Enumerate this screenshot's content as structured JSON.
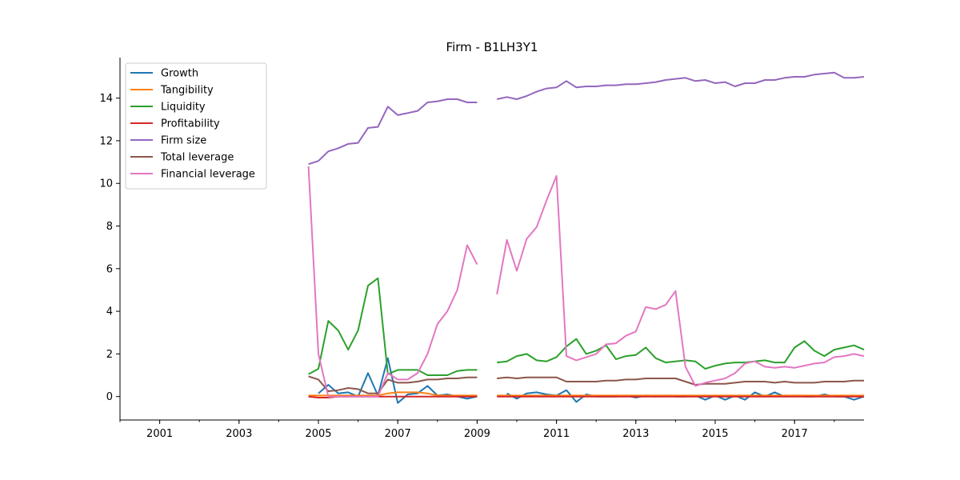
{
  "chart_data": {
    "type": "line",
    "title": "Firm - B1LH3Y1",
    "xlabel": "",
    "ylabel": "",
    "xlim": [
      2000.0,
      2018.75
    ],
    "ylim": [
      -1.1,
      15.9
    ],
    "grid": false,
    "legend_position": "top-left",
    "x_ticks": [
      2001,
      2003,
      2005,
      2007,
      2009,
      2011,
      2013,
      2015,
      2017
    ],
    "y_ticks": [
      0,
      2,
      4,
      6,
      8,
      10,
      12,
      14
    ],
    "x": [
      2004.75,
      2005.0,
      2005.25,
      2005.5,
      2005.75,
      2006.0,
      2006.25,
      2006.5,
      2006.75,
      2007.0,
      2007.25,
      2007.5,
      2007.75,
      2008.0,
      2008.25,
      2008.5,
      2008.75,
      2009.0,
      2009.25,
      2009.5,
      2009.75,
      2010.0,
      2010.25,
      2010.5,
      2010.75,
      2011.0,
      2011.25,
      2011.5,
      2011.75,
      2012.0,
      2012.25,
      2012.5,
      2012.75,
      2013.0,
      2013.25,
      2013.5,
      2013.75,
      2014.0,
      2014.25,
      2014.5,
      2014.75,
      2015.0,
      2015.25,
      2015.5,
      2015.75,
      2016.0,
      2016.25,
      2016.5,
      2016.75,
      2017.0,
      2017.25,
      2017.5,
      2017.75,
      2018.0,
      2018.25,
      2018.5,
      2018.75
    ],
    "series": [
      {
        "name": "Growth",
        "color": "#1f77b4",
        "values": [
          null,
          0.15,
          0.55,
          0.15,
          0.2,
          0.0,
          1.1,
          0.05,
          1.8,
          -0.3,
          0.1,
          0.15,
          0.5,
          0.05,
          0.1,
          0.0,
          -0.1,
          0.0,
          null,
          null,
          0.15,
          -0.1,
          0.15,
          0.2,
          0.1,
          0.05,
          0.3,
          -0.25,
          0.1,
          0.0,
          0.0,
          0.0,
          0.05,
          -0.05,
          0.05,
          0.0,
          0.05,
          0.0,
          0.0,
          0.05,
          -0.15,
          0.05,
          -0.15,
          0.05,
          -0.15,
          0.2,
          0.0,
          0.2,
          0.0,
          0.05,
          0.0,
          0.0,
          0.1,
          0.0,
          0.0,
          -0.15,
          0.0
        ]
      },
      {
        "name": "Tangibility",
        "color": "#ff7f0e",
        "values": [
          0.05,
          0.05,
          0.05,
          0.05,
          0.05,
          0.05,
          0.05,
          0.05,
          0.15,
          0.2,
          0.2,
          0.2,
          0.15,
          0.05,
          0.05,
          0.05,
          0.05,
          0.05,
          null,
          0.05,
          0.05,
          0.05,
          0.05,
          0.05,
          0.05,
          0.05,
          0.05,
          0.05,
          0.05,
          0.05,
          0.05,
          0.05,
          0.05,
          0.05,
          0.05,
          0.05,
          0.05,
          0.05,
          0.05,
          0.05,
          0.05,
          0.05,
          0.05,
          0.05,
          0.05,
          0.05,
          0.05,
          0.05,
          0.05,
          0.05,
          0.05,
          0.05,
          0.05,
          0.05,
          0.05,
          0.05,
          0.05
        ]
      },
      {
        "name": "Liquidity",
        "color": "#2ca02c",
        "values": [
          1.05,
          1.3,
          3.55,
          3.1,
          2.2,
          3.1,
          5.2,
          5.55,
          1.05,
          1.25,
          1.25,
          1.25,
          1.0,
          1.0,
          1.0,
          1.2,
          1.25,
          1.25,
          null,
          1.6,
          1.65,
          1.9,
          2.0,
          1.7,
          1.65,
          1.85,
          2.35,
          2.7,
          2.0,
          2.15,
          2.4,
          1.75,
          1.9,
          1.95,
          2.3,
          1.8,
          1.6,
          1.65,
          1.7,
          1.65,
          1.3,
          1.45,
          1.55,
          1.6,
          1.6,
          1.65,
          1.7,
          1.6,
          1.6,
          2.3,
          2.6,
          2.15,
          1.9,
          2.2,
          2.3,
          2.4,
          2.2
        ]
      },
      {
        "name": "Profitability",
        "color": "#d62728",
        "values": [
          0.0,
          -0.05,
          -0.05,
          0.0,
          0.0,
          0.0,
          0.0,
          0.0,
          0.0,
          0.0,
          0.0,
          0.0,
          0.0,
          0.0,
          0.0,
          0.0,
          0.0,
          0.0,
          null,
          0.0,
          0.0,
          0.0,
          0.0,
          0.0,
          0.0,
          0.0,
          0.0,
          0.0,
          0.0,
          0.0,
          0.0,
          0.0,
          0.0,
          0.0,
          0.0,
          0.0,
          0.0,
          0.0,
          0.0,
          0.0,
          0.0,
          0.0,
          0.0,
          0.0,
          0.0,
          0.0,
          0.0,
          0.0,
          0.0,
          0.0,
          0.0,
          0.0,
          0.0,
          0.0,
          0.0,
          0.0,
          0.0
        ]
      },
      {
        "name": "Firm size",
        "color": "#9467bd",
        "values": [
          10.9,
          11.05,
          11.5,
          11.65,
          11.85,
          11.9,
          12.6,
          12.65,
          13.6,
          13.2,
          13.3,
          13.4,
          13.8,
          13.85,
          13.95,
          13.95,
          13.8,
          13.8,
          null,
          13.95,
          14.05,
          13.95,
          14.1,
          14.3,
          14.45,
          14.5,
          14.8,
          14.5,
          14.55,
          14.55,
          14.6,
          14.6,
          14.65,
          14.65,
          14.7,
          14.75,
          14.85,
          14.9,
          14.95,
          14.8,
          14.85,
          14.7,
          14.75,
          14.55,
          14.7,
          14.7,
          14.85,
          14.85,
          14.95,
          15.0,
          15.0,
          15.1,
          15.15,
          15.2,
          14.95,
          14.95,
          15.0
        ]
      },
      {
        "name": "Total leverage",
        "color": "#8c564b",
        "values": [
          0.95,
          0.8,
          0.25,
          0.3,
          0.4,
          0.35,
          0.15,
          0.15,
          0.8,
          0.65,
          0.65,
          0.7,
          0.8,
          0.8,
          0.85,
          0.85,
          0.9,
          0.9,
          null,
          0.85,
          0.9,
          0.85,
          0.9,
          0.9,
          0.9,
          0.9,
          0.7,
          0.7,
          0.7,
          0.7,
          0.75,
          0.75,
          0.8,
          0.8,
          0.85,
          0.85,
          0.85,
          0.85,
          0.7,
          0.55,
          0.6,
          0.6,
          0.6,
          0.65,
          0.7,
          0.7,
          0.7,
          0.65,
          0.7,
          0.65,
          0.65,
          0.65,
          0.7,
          0.7,
          0.7,
          0.75,
          0.75
        ]
      },
      {
        "name": "Financial leverage",
        "color": "#e377c2",
        "values": [
          10.8,
          2.0,
          0.0,
          0.0,
          0.0,
          0.0,
          0.0,
          0.0,
          1.1,
          0.8,
          0.8,
          1.1,
          2.0,
          3.4,
          4.0,
          5.0,
          7.1,
          6.2,
          null,
          4.8,
          7.35,
          5.9,
          7.4,
          7.95,
          9.2,
          10.35,
          1.9,
          1.7,
          1.85,
          2.0,
          2.45,
          2.5,
          2.85,
          3.05,
          4.2,
          4.1,
          4.3,
          4.95,
          1.4,
          0.5,
          0.65,
          0.75,
          0.85,
          1.1,
          1.55,
          1.65,
          1.4,
          1.35,
          1.4,
          1.35,
          1.45,
          1.55,
          1.6,
          1.85,
          1.9,
          2.0,
          1.9
        ]
      }
    ]
  }
}
